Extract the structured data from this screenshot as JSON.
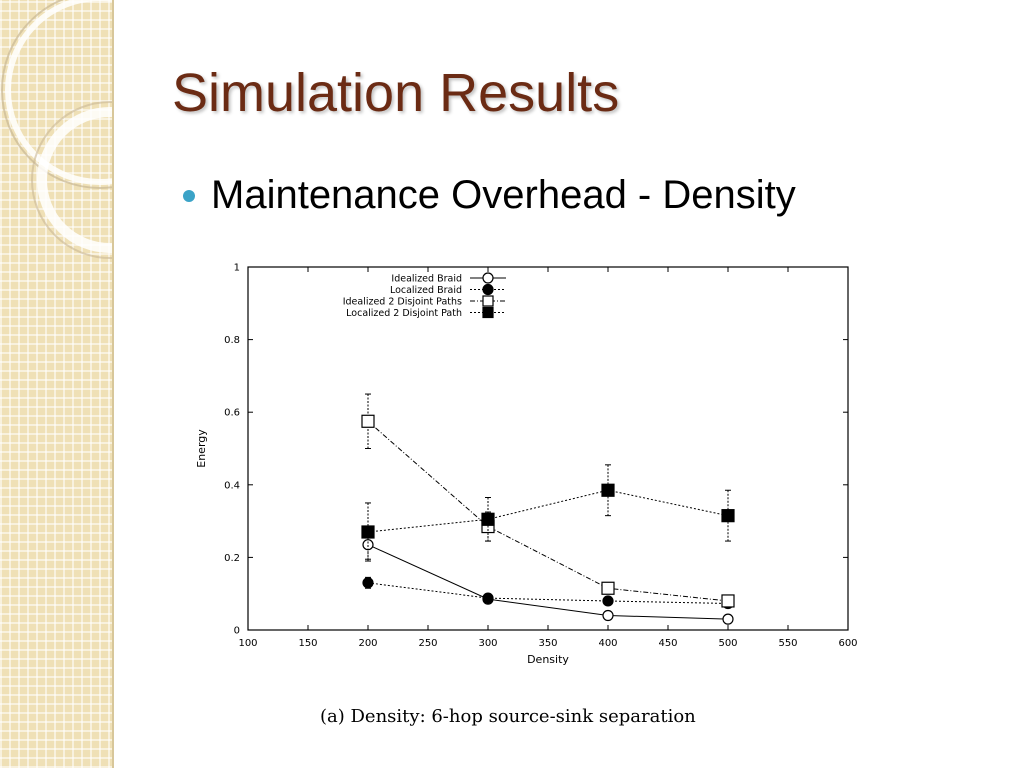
{
  "slide": {
    "title": "Simulation Results",
    "bullet": "Maintenance Overhead - Density",
    "caption": "(a) Density:  6-hop source-sink separation",
    "accent_color": "#3ba3c7",
    "title_color": "#6b2b14"
  },
  "chart_data": {
    "type": "line",
    "title": "",
    "xlabel": "Density",
    "ylabel": "Energy",
    "xlim": [
      100,
      600
    ],
    "ylim": [
      0,
      1
    ],
    "xticks": [
      100,
      150,
      200,
      250,
      300,
      350,
      400,
      450,
      500,
      550,
      600
    ],
    "yticks": [
      0,
      0.2,
      0.4,
      0.6,
      0.8,
      1
    ],
    "ytick_labels": [
      "0",
      "0.2",
      "0.4",
      "0.6",
      "0.8",
      "1"
    ],
    "legend_position": "top-center",
    "series": [
      {
        "name": "Idealized Braid",
        "marker": "open-circle",
        "line": "solid",
        "x": [
          200,
          300,
          400,
          500
        ],
        "y": [
          0.235,
          0.085,
          0.04,
          0.03
        ],
        "err": [
          0.04,
          0.01,
          0.008,
          0.006
        ]
      },
      {
        "name": "Localized Braid",
        "marker": "filled-circle",
        "line": "dotted",
        "x": [
          200,
          300,
          400,
          500
        ],
        "y": [
          0.13,
          0.088,
          0.08,
          0.073
        ],
        "err": [
          0.015,
          0.01,
          0.006,
          0.006
        ]
      },
      {
        "name": "Idealized 2 Disjoint Paths",
        "marker": "open-square",
        "line": "dash-dot",
        "x": [
          200,
          300,
          400,
          500
        ],
        "y": [
          0.575,
          0.285,
          0.115,
          0.08
        ],
        "err": [
          0.075,
          0.04,
          0.015,
          0.008
        ]
      },
      {
        "name": "Localized 2 Disjoint Path",
        "marker": "filled-square",
        "line": "dotted",
        "x": [
          200,
          300,
          400,
          500
        ],
        "y": [
          0.27,
          0.305,
          0.385,
          0.315
        ],
        "err": [
          0.08,
          0.06,
          0.07,
          0.07
        ]
      }
    ]
  }
}
